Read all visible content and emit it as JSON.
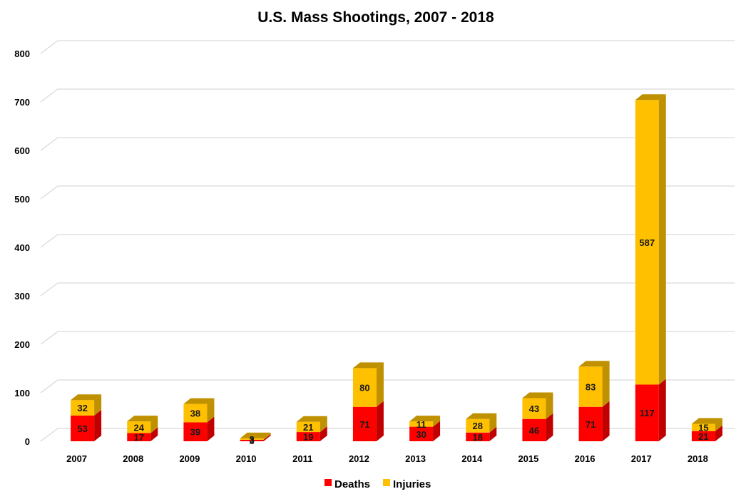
{
  "chart_data": {
    "type": "bar",
    "stacked": true,
    "style": "3d-column",
    "title": "U.S. Mass Shootings, 2007 - 2018",
    "xlabel": "",
    "ylabel": "",
    "ylim": [
      0,
      800
    ],
    "yticks": [
      0,
      100,
      200,
      300,
      400,
      500,
      600,
      700,
      800
    ],
    "grid": true,
    "legend_position": "bottom",
    "categories": [
      "2007",
      "2008",
      "2009",
      "2010",
      "2011",
      "2012",
      "2013",
      "2014",
      "2015",
      "2016",
      "2017",
      "2018"
    ],
    "series": [
      {
        "name": "Deaths",
        "color": "#ff0000",
        "side_color": "#c00000",
        "values": [
          53,
          17,
          39,
          3,
          19,
          71,
          30,
          18,
          46,
          71,
          117,
          21
        ]
      },
      {
        "name": "Injuries",
        "color": "#ffc000",
        "side_color": "#bf9000",
        "values": [
          32,
          24,
          38,
          3,
          21,
          80,
          11,
          28,
          43,
          83,
          587,
          15
        ]
      }
    ]
  }
}
